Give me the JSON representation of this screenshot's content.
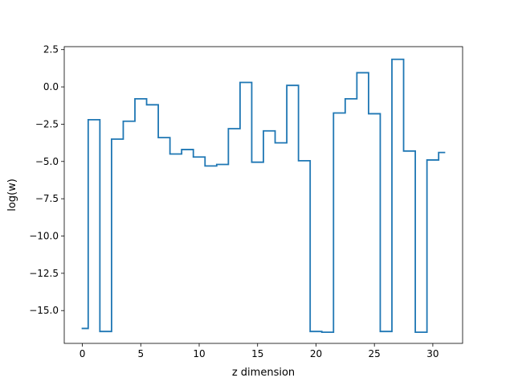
{
  "chart_data": {
    "type": "line",
    "drawstyle": "steps-mid",
    "xlabel": "z dimension",
    "ylabel": "log(w)",
    "xlim": [
      -1.55,
      32.55
    ],
    "ylim": [
      -17.2,
      2.7
    ],
    "grid": false,
    "line_color": "#1f77b4",
    "x_ticks": [
      0,
      5,
      10,
      15,
      20,
      25,
      30
    ],
    "x_tick_labels": [
      "0",
      "5",
      "10",
      "15",
      "20",
      "25",
      "30"
    ],
    "y_ticks": [
      2.5,
      0.0,
      -2.5,
      -5.0,
      -7.5,
      -10.0,
      -12.5,
      -15.0
    ],
    "y_tick_labels": [
      "2.5",
      "0.0",
      "−2.5",
      "−5.0",
      "−7.5",
      "−10.0",
      "−12.5",
      "−15.0"
    ],
    "series": [
      {
        "x": [
          0,
          1,
          2,
          3,
          4,
          5,
          6,
          7,
          8,
          9,
          10,
          11,
          12,
          13,
          14,
          15,
          16,
          17,
          18,
          19,
          20,
          21,
          22,
          23,
          24,
          25,
          26,
          27,
          28,
          29,
          30,
          31
        ],
        "values": [
          -16.2,
          -2.2,
          -16.4,
          -3.5,
          -2.3,
          -0.8,
          -1.2,
          -3.4,
          -4.5,
          -4.2,
          -4.7,
          -5.3,
          -5.2,
          -2.8,
          0.3,
          -5.05,
          -2.95,
          -3.75,
          0.1,
          -4.95,
          -16.4,
          -16.45,
          -1.75,
          -0.8,
          0.95,
          -1.8,
          -16.4,
          1.85,
          -4.3,
          -16.45,
          -4.9,
          -4.4
        ]
      }
    ]
  }
}
